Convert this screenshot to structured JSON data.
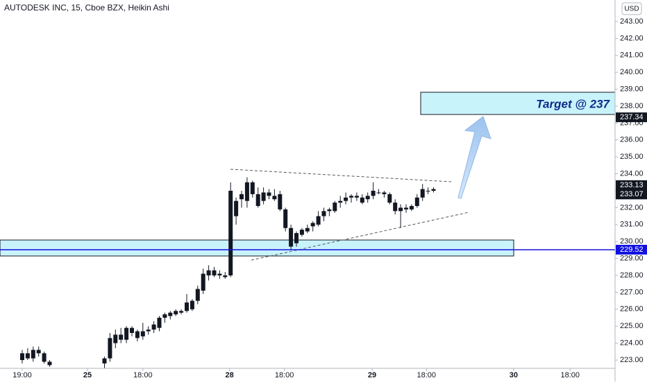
{
  "chart_data": {
    "type": "candlestick",
    "title": "AUTODESK INC, 15, Cboe BZX, Heikin Ashi",
    "currency": "USD",
    "annotation": "Target @ 237",
    "color": "#131722",
    "ylim": [
      222.51,
      244.27
    ],
    "yticks": [
      {
        "value": 223,
        "label": "223.00"
      },
      {
        "value": 224,
        "label": "224.00"
      },
      {
        "value": 225,
        "label": "225.00"
      },
      {
        "value": 226,
        "label": "226.00"
      },
      {
        "value": 227,
        "label": "227.00"
      },
      {
        "value": 228,
        "label": "228.00"
      },
      {
        "value": 229,
        "label": "229.00"
      },
      {
        "value": 230,
        "label": "230.00"
      },
      {
        "value": 231,
        "label": "231.00"
      },
      {
        "value": 232,
        "label": "232.00"
      },
      {
        "value": 233,
        "label": "233.00"
      },
      {
        "value": 234,
        "label": "234.00"
      },
      {
        "value": 235,
        "label": "235.00"
      },
      {
        "value": 236,
        "label": "236.00"
      },
      {
        "value": 237,
        "label": "237.00"
      },
      {
        "value": 238,
        "label": "238.00"
      },
      {
        "value": 239,
        "label": "239.00"
      },
      {
        "value": 240,
        "label": "240.00"
      },
      {
        "value": 241,
        "label": "241.00"
      },
      {
        "value": 242,
        "label": "242.00"
      },
      {
        "value": 243,
        "label": "243.00"
      }
    ],
    "xlim": [
      -4.05,
      108.1
    ],
    "xticks": [
      {
        "value": 0,
        "label": "19:00"
      },
      {
        "value": 11.9,
        "label": "25"
      },
      {
        "value": 22,
        "label": "18:00"
      },
      {
        "value": 37.8,
        "label": "28"
      },
      {
        "value": 47.8,
        "label": "18:00"
      },
      {
        "value": 63.8,
        "label": "29"
      },
      {
        "value": 73.7,
        "label": "18:00"
      },
      {
        "value": 89.6,
        "label": "30"
      },
      {
        "value": 99.9,
        "label": "18:00"
      }
    ],
    "price_labels": [
      {
        "value": 237.34,
        "label": "237.34",
        "color": "#131722"
      },
      {
        "value": 233.13,
        "label": "233.13",
        "color": "#131722"
      },
      {
        "value": 233.07,
        "label": "233.07",
        "color": "#131722"
      },
      {
        "value": 229.52,
        "label": "229.52",
        "color": "#1010e0"
      }
    ],
    "x": [
      0,
      1,
      2,
      3,
      4,
      5,
      15,
      16,
      17,
      18,
      19,
      20,
      21,
      22,
      23,
      24,
      25,
      26,
      27,
      28,
      29,
      30,
      31,
      32,
      33,
      34,
      35,
      36,
      37,
      38,
      39,
      40,
      41,
      42,
      43,
      44,
      45,
      46,
      47,
      48,
      49,
      50,
      51,
      52,
      53,
      54,
      55,
      56,
      57,
      58,
      59,
      60,
      61,
      62,
      63,
      64,
      65,
      66,
      67,
      68,
      69,
      70,
      71,
      72,
      73,
      74,
      75
    ],
    "open": [
      223.0,
      223.4,
      223.1,
      223.6,
      223.4,
      222.9,
      222.8,
      223.1,
      224.0,
      224.5,
      224.2,
      224.9,
      224.3,
      224.4,
      224.7,
      224.8,
      224.9,
      225.5,
      225.6,
      225.7,
      225.8,
      225.9,
      226.0,
      226.5,
      227.1,
      228.0,
      228.3,
      228.0,
      228.0,
      228.0,
      232.4,
      232.5,
      232.4,
      233.5,
      232.8,
      232.4,
      232.9,
      232.7,
      232.8,
      231.9,
      230.8,
      229.9,
      230.4,
      230.6,
      230.9,
      231.0,
      231.5,
      231.8,
      231.8,
      232.3,
      232.4,
      232.6,
      232.7,
      232.6,
      232.5,
      232.7,
      232.9,
      232.9,
      232.8,
      232.3,
      231.8,
      232.0,
      231.9,
      232.1,
      232.6,
      233.0,
      233.0
    ],
    "high": [
      223.6,
      223.7,
      223.8,
      223.8,
      223.5,
      223.0,
      223.2,
      224.6,
      224.8,
      224.9,
      225.0,
      225.0,
      224.8,
      225.2,
      225.0,
      225.3,
      225.6,
      225.8,
      225.9,
      226.0,
      226.0,
      226.9,
      226.6,
      227.4,
      228.4,
      228.6,
      228.5,
      228.3,
      228.2,
      233.5,
      232.6,
      233.0,
      233.8,
      233.6,
      233.2,
      233.2,
      233.1,
      233.1,
      233.0,
      232.0,
      231.0,
      230.6,
      230.8,
      231.0,
      231.2,
      231.8,
      232.0,
      232.0,
      232.4,
      232.7,
      232.9,
      232.8,
      232.9,
      232.8,
      232.9,
      233.5,
      233.1,
      233.0,
      232.9,
      232.5,
      232.2,
      232.2,
      232.2,
      232.8,
      233.4,
      233.2,
      233.2
    ],
    "low": [
      222.8,
      223.0,
      222.9,
      223.2,
      222.8,
      222.6,
      222.5,
      222.9,
      223.7,
      224.0,
      224.0,
      224.4,
      224.1,
      224.2,
      224.5,
      224.6,
      224.7,
      225.2,
      225.4,
      225.6,
      225.7,
      225.8,
      225.9,
      226.3,
      226.9,
      227.7,
      227.9,
      227.8,
      227.8,
      227.9,
      231.0,
      232.0,
      232.0,
      232.6,
      232.0,
      232.2,
      232.5,
      232.4,
      231.8,
      230.6,
      229.5,
      229.7,
      230.3,
      230.5,
      230.6,
      230.9,
      231.2,
      231.5,
      231.7,
      232.0,
      232.2,
      232.3,
      232.4,
      232.2,
      232.3,
      232.5,
      232.8,
      232.6,
      232.2,
      231.6,
      230.8,
      231.7,
      231.8,
      232.0,
      232.4,
      232.8,
      232.9
    ],
    "close": [
      223.4,
      223.1,
      223.6,
      223.4,
      222.9,
      222.7,
      223.1,
      224.3,
      224.5,
      224.2,
      224.9,
      224.6,
      224.7,
      224.7,
      224.8,
      225.1,
      225.5,
      225.7,
      225.8,
      225.9,
      225.9,
      226.4,
      226.5,
      227.2,
      228.1,
      228.3,
      228.0,
      228.1,
      227.9,
      233.0,
      231.5,
      232.8,
      233.5,
      232.8,
      232.1,
      232.9,
      232.7,
      232.5,
      231.9,
      230.8,
      229.7,
      230.5,
      230.7,
      230.8,
      231.1,
      231.5,
      231.8,
      231.9,
      232.3,
      232.4,
      232.6,
      232.7,
      232.6,
      232.3,
      232.7,
      233.0,
      232.9,
      232.8,
      232.3,
      231.8,
      232.0,
      231.9,
      232.1,
      232.6,
      233.1,
      233.0,
      233.1
    ]
  }
}
